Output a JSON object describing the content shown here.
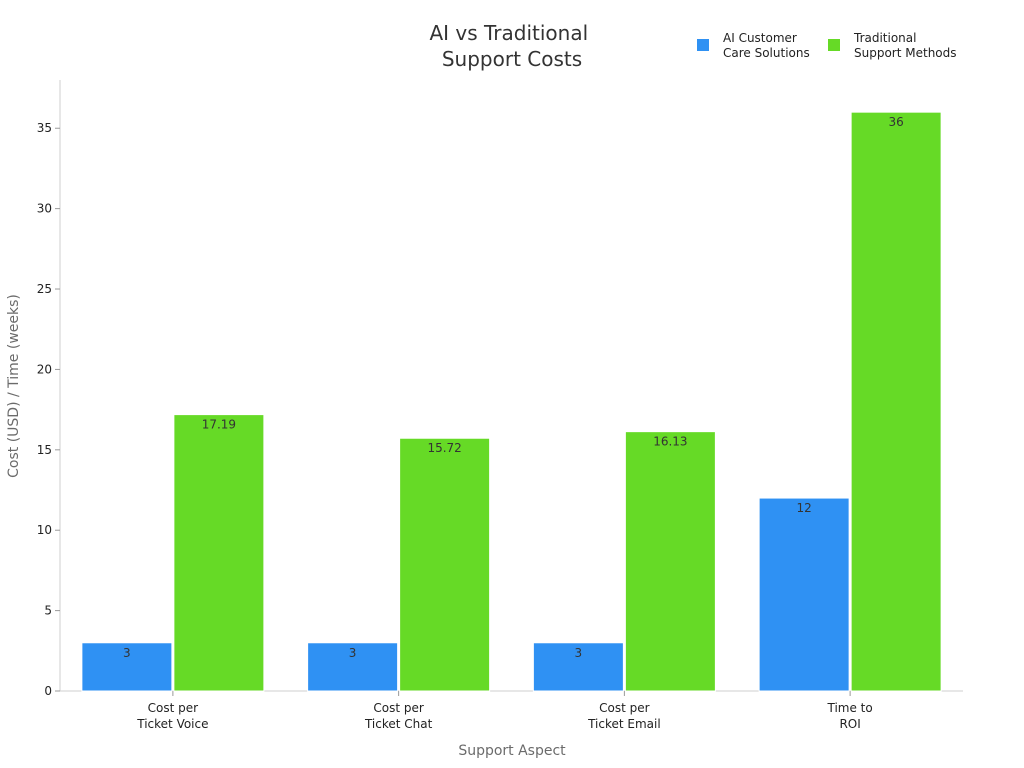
{
  "chart_data": {
    "type": "bar",
    "title_lines": [
      "AI vs Traditional",
      "Support Costs"
    ],
    "xlabel": "Support Aspect",
    "ylabel": "Cost (USD) / Time (weeks)",
    "categories": [
      [
        "Cost per",
        "Ticket Voice"
      ],
      [
        "Cost per",
        "Ticket Chat"
      ],
      [
        "Cost per",
        "Ticket Email"
      ],
      [
        "Time to",
        "ROI"
      ]
    ],
    "series": [
      {
        "name_lines": [
          "AI Customer",
          "Care Solutions"
        ],
        "color": "#2f91f3",
        "values": [
          3,
          3,
          3,
          12
        ]
      },
      {
        "name_lines": [
          "Traditional",
          "Support Methods"
        ],
        "color": "#66da26",
        "values": [
          17.19,
          15.72,
          16.13,
          36
        ]
      }
    ],
    "ylim": [
      0,
      38
    ],
    "yticks": [
      0,
      5,
      10,
      15,
      20,
      25,
      30,
      35
    ],
    "grid": false,
    "legend_position": "top-right"
  }
}
